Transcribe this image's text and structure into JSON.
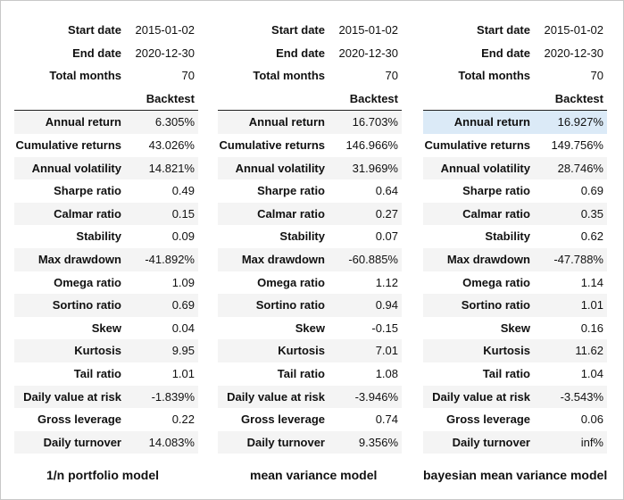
{
  "header": "Backtest",
  "meta_labels": [
    "Start date",
    "End date",
    "Total months"
  ],
  "metric_labels": [
    "Annual return",
    "Cumulative returns",
    "Annual volatility",
    "Sharpe ratio",
    "Calmar ratio",
    "Stability",
    "Max drawdown",
    "Omega ratio",
    "Sortino ratio",
    "Skew",
    "Kurtosis",
    "Tail ratio",
    "Daily value at risk",
    "Gross leverage",
    "Daily turnover"
  ],
  "highlight_color": "#dbeaf7",
  "models": [
    {
      "title": "1/n portfolio model",
      "meta": [
        "2015-01-02",
        "2020-12-30",
        "70"
      ],
      "values": [
        "6.305%",
        "43.026%",
        "14.821%",
        "0.49",
        "0.15",
        "0.09",
        "-41.892%",
        "1.09",
        "0.69",
        "0.04",
        "9.95",
        "1.01",
        "-1.839%",
        "0.22",
        "14.083%"
      ]
    },
    {
      "title": "mean variance model",
      "meta": [
        "2015-01-02",
        "2020-12-30",
        "70"
      ],
      "values": [
        "16.703%",
        "146.966%",
        "31.969%",
        "0.64",
        "0.27",
        "0.07",
        "-60.885%",
        "1.12",
        "0.94",
        "-0.15",
        "7.01",
        "1.08",
        "-3.946%",
        "0.74",
        "9.356%"
      ]
    },
    {
      "title": "bayesian mean variance model",
      "meta": [
        "2015-01-02",
        "2020-12-30",
        "70"
      ],
      "values": [
        "16.927%",
        "149.756%",
        "28.746%",
        "0.69",
        "0.35",
        "0.62",
        "-47.788%",
        "1.14",
        "1.01",
        "0.16",
        "11.62",
        "1.04",
        "-3.543%",
        "0.06",
        "inf%"
      ]
    }
  ]
}
